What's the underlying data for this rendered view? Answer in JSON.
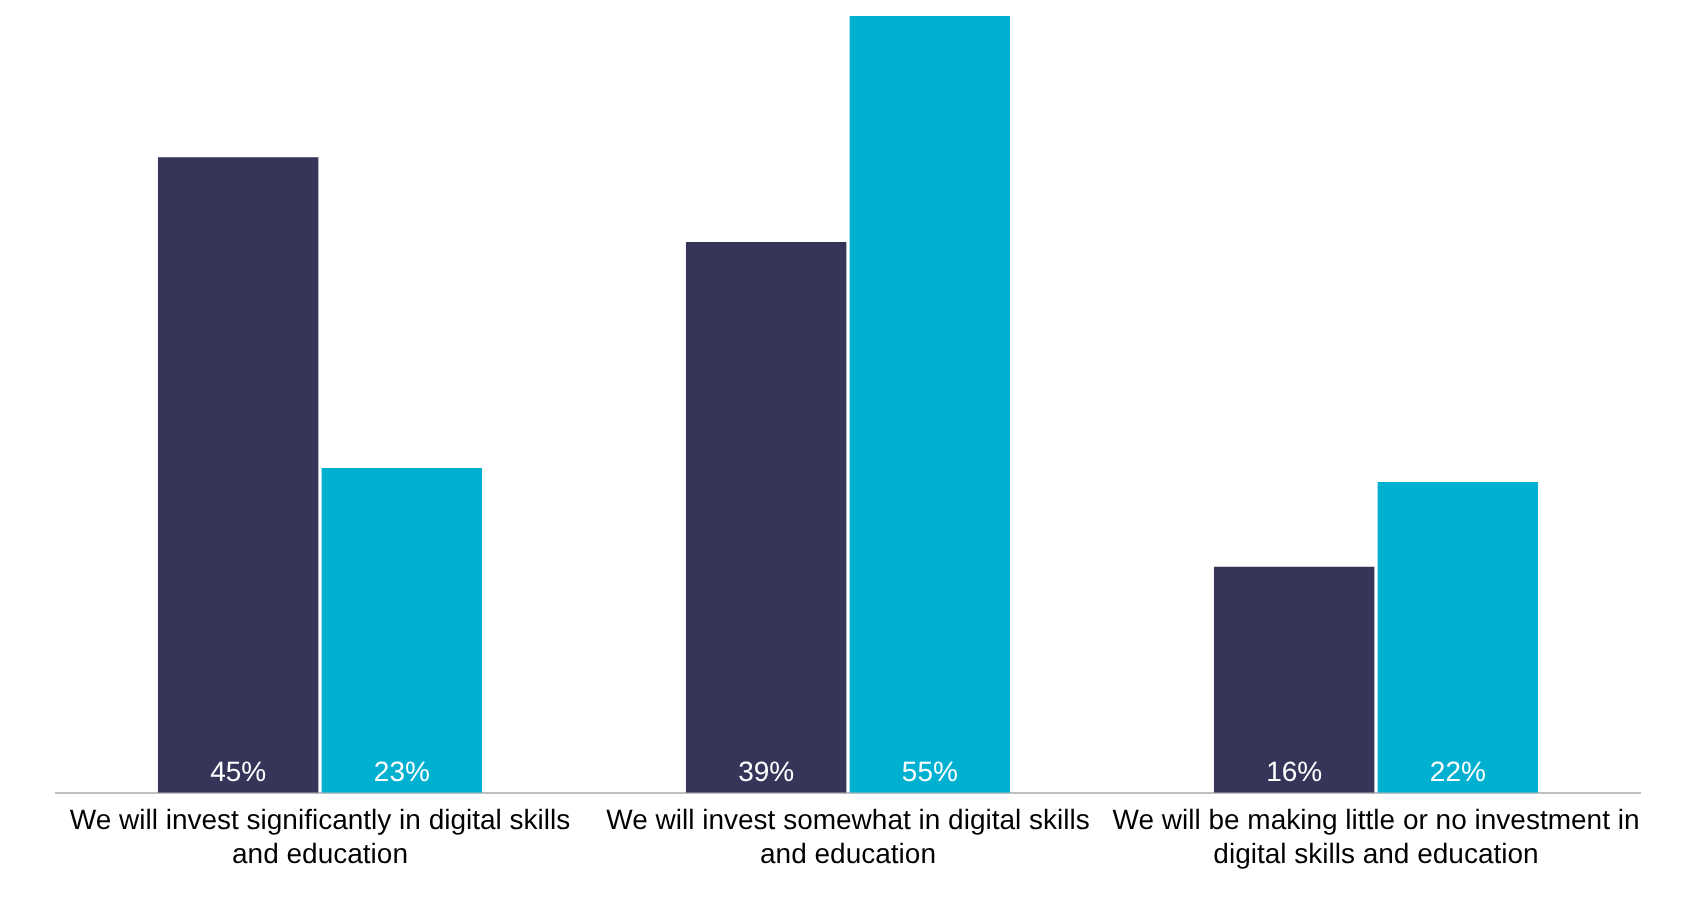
{
  "chart_data": {
    "type": "bar",
    "categories": [
      "We will invest significantly in digital skills and education",
      "We will invest somewhat in digital skills and education",
      "We will be making little or no investment in digital skills and education"
    ],
    "series": [
      {
        "color": "#35355a",
        "values": [
          45,
          39,
          16
        ],
        "value_labels": [
          "45%",
          "39%",
          "16%"
        ]
      },
      {
        "color": "#00b0d0",
        "values": [
          23,
          55,
          22
        ],
        "value_labels": [
          "23%",
          "55%",
          "22%"
        ]
      }
    ],
    "grid": false,
    "legend": false
  }
}
